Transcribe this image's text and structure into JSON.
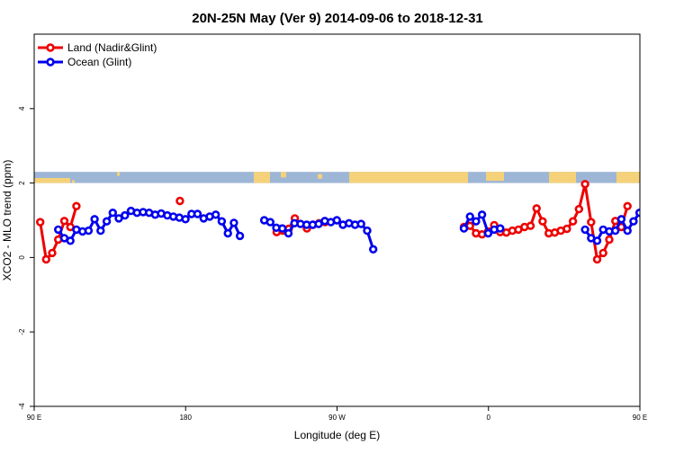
{
  "chart_data": {
    "type": "line",
    "title": "20N-25N May (Ver 9)   2014-09-06 to 2018-12-31",
    "xlabel": "Longitude (deg E)",
    "ylabel": "XCO2 - MLO trend (ppm)",
    "xlim": [
      90,
      450
    ],
    "ylim": [
      -4,
      6
    ],
    "x_ticks": [
      {
        "value": 90,
        "label": "90 E"
      },
      {
        "value": 180,
        "label": "180"
      },
      {
        "value": 270,
        "label": "90 W"
      },
      {
        "value": 360,
        "label": "0"
      },
      {
        "value": 450,
        "label": "90 E"
      },
      {
        "value": 540,
        "label": "180"
      }
    ],
    "y_ticks": [
      {
        "value": -4,
        "label": "-4"
      },
      {
        "value": -2,
        "label": "-2"
      },
      {
        "value": 0,
        "label": "0"
      },
      {
        "value": 2,
        "label": "2"
      },
      {
        "value": 4,
        "label": "4"
      }
    ],
    "grid": false,
    "legend_position": "top-left",
    "land_strip": {
      "y_from": 2.0,
      "y_to": 2.3,
      "ocean_color": "#9eb6d6",
      "land_color": "#f5d27a"
    },
    "series": [
      {
        "name": "Land (Nadir&Glint)",
        "color": "#ee0000",
        "segments": [
          [
            [
              93.6,
              0.95
            ],
            [
              97.1,
              -0.05
            ],
            [
              100.7,
              0.12
            ],
            [
              104.3,
              0.48
            ],
            [
              107.9,
              0.98
            ],
            [
              111.5,
              0.82
            ],
            [
              115.1,
              1.38
            ]
          ],
          [
            [
              176.6,
              1.52
            ]
          ],
          [
            [
              234.1,
              0.68
            ],
            [
              237.7,
              0.72
            ],
            [
              241.3,
              0.77
            ],
            [
              244.9,
              1.05
            ]
          ],
          [
            [
              252.1,
              0.78
            ],
            [
              255.7,
              0.88
            ],
            [
              259.3,
              0.92
            ],
            [
              262.9,
              0.95
            ]
          ],
          [
            [
              345.4,
              0.82
            ]
          ],
          [
            [
              349.0,
              0.85
            ],
            [
              352.6,
              0.65
            ],
            [
              356.2,
              0.62
            ],
            [
              359.8,
              0.7
            ],
            [
              363.4,
              0.87
            ],
            [
              367.0,
              0.68
            ],
            [
              370.6,
              0.67
            ],
            [
              374.2,
              0.72
            ],
            [
              377.8,
              0.75
            ],
            [
              381.4,
              0.82
            ],
            [
              385.0,
              0.85
            ],
            [
              388.6,
              1.32
            ],
            [
              392.2,
              0.97
            ],
            [
              395.8,
              0.65
            ],
            [
              399.4,
              0.67
            ],
            [
              403.0,
              0.72
            ],
            [
              406.6,
              0.77
            ],
            [
              410.2,
              0.97
            ],
            [
              413.8,
              1.3
            ],
            [
              417.4,
              1.97
            ],
            [
              421.0,
              0.95
            ],
            [
              424.6,
              -0.05
            ],
            [
              428.2,
              0.12
            ],
            [
              431.8,
              0.48
            ],
            [
              435.4,
              0.98
            ],
            [
              439.0,
              0.82
            ],
            [
              442.6,
              1.38
            ]
          ]
        ]
      },
      {
        "name": "Ocean (Glint)",
        "color": "#0000ee",
        "segments": [
          [
            [
              104.3,
              0.75
            ],
            [
              107.9,
              0.52
            ],
            [
              111.5,
              0.45
            ],
            [
              115.1,
              0.75
            ],
            [
              118.7,
              0.7
            ],
            [
              122.3,
              0.72
            ],
            [
              125.9,
              1.03
            ],
            [
              129.5,
              0.72
            ],
            [
              133.1,
              0.97
            ],
            [
              136.7,
              1.2
            ],
            [
              140.3,
              1.05
            ],
            [
              143.9,
              1.13
            ],
            [
              147.5,
              1.25
            ],
            [
              151.1,
              1.2
            ],
            [
              154.7,
              1.22
            ],
            [
              158.3,
              1.2
            ],
            [
              161.9,
              1.15
            ],
            [
              165.5,
              1.18
            ],
            [
              169.1,
              1.13
            ],
            [
              172.7,
              1.1
            ],
            [
              176.3,
              1.07
            ],
            [
              179.9,
              1.03
            ],
            [
              183.5,
              1.17
            ],
            [
              187.1,
              1.17
            ],
            [
              190.7,
              1.05
            ],
            [
              194.3,
              1.1
            ],
            [
              197.9,
              1.15
            ],
            [
              201.5,
              0.97
            ],
            [
              205.1,
              0.65
            ],
            [
              208.7,
              0.93
            ],
            [
              212.3,
              0.58
            ]
          ],
          [
            [
              226.7,
              1.0
            ],
            [
              230.3,
              0.95
            ],
            [
              233.9,
              0.8
            ],
            [
              237.5,
              0.78
            ],
            [
              241.1,
              0.65
            ],
            [
              244.7,
              0.92
            ],
            [
              248.3,
              0.9
            ],
            [
              251.9,
              0.88
            ],
            [
              255.5,
              0.88
            ],
            [
              259.1,
              0.9
            ],
            [
              262.7,
              0.98
            ],
            [
              266.3,
              0.95
            ],
            [
              269.9,
              1.0
            ],
            [
              273.5,
              0.88
            ],
            [
              277.1,
              0.92
            ],
            [
              280.7,
              0.88
            ],
            [
              284.3,
              0.9
            ],
            [
              287.9,
              0.72
            ],
            [
              291.5,
              0.22
            ]
          ],
          [
            [
              345.4,
              0.78
            ],
            [
              349.0,
              1.1
            ],
            [
              352.6,
              0.97
            ],
            [
              356.2,
              1.15
            ],
            [
              359.8,
              0.65
            ],
            [
              363.4,
              0.75
            ],
            [
              367.0,
              0.78
            ]
          ],
          [
            [
              417.4,
              0.75
            ],
            [
              421.0,
              0.52
            ],
            [
              424.6,
              0.45
            ],
            [
              428.2,
              0.75
            ],
            [
              431.8,
              0.7
            ],
            [
              435.4,
              0.72
            ],
            [
              439.0,
              1.03
            ],
            [
              442.6,
              0.72
            ],
            [
              446.2,
              0.97
            ],
            [
              449.8,
              1.2
            ],
            [
              453.4,
              1.05
            ],
            [
              457.0,
              1.13
            ],
            [
              460.6,
              1.25
            ],
            [
              464.2,
              1.2
            ],
            [
              467.8,
              1.22
            ]
          ]
        ]
      }
    ]
  }
}
